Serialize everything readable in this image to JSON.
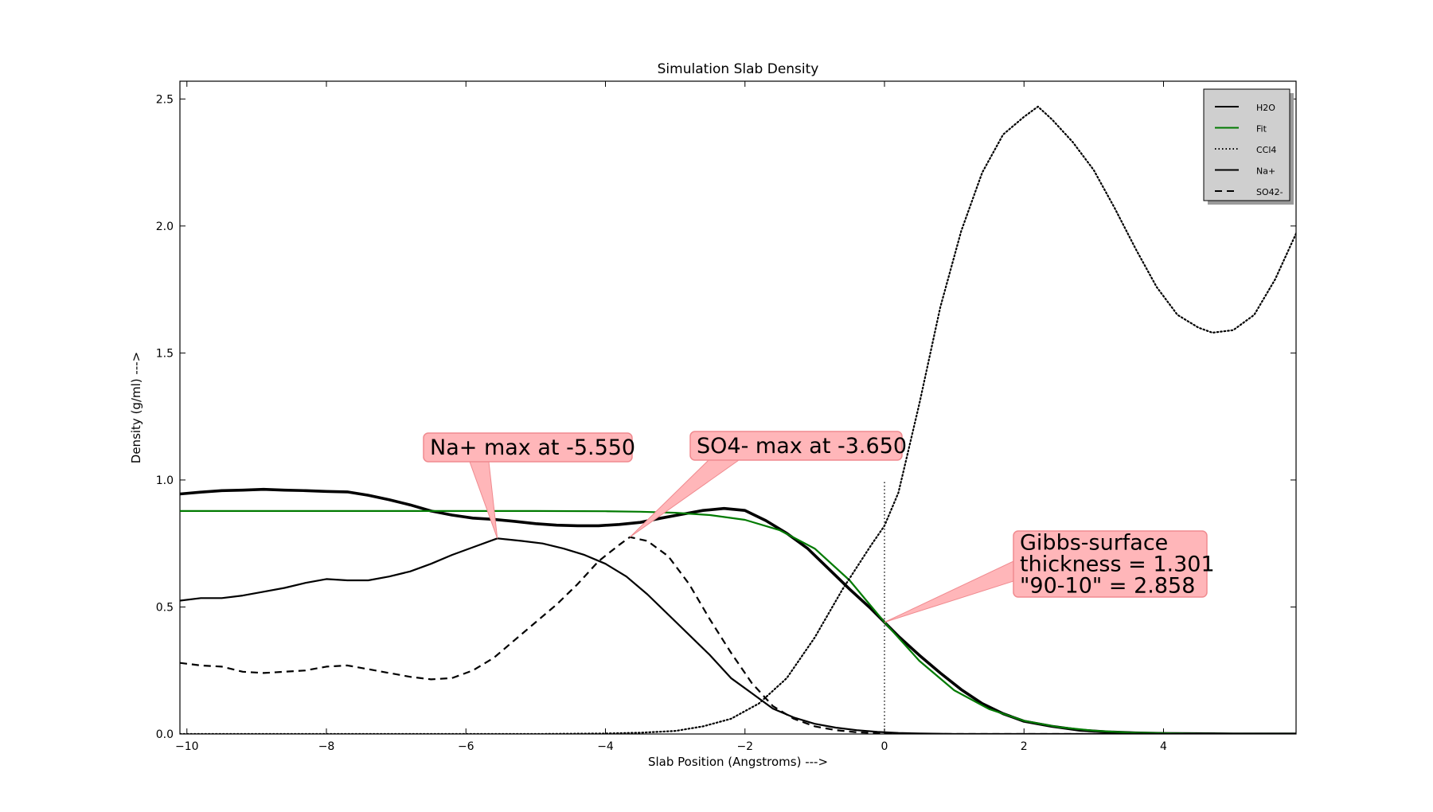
{
  "chart_data": {
    "type": "line",
    "title": "Simulation Slab Density",
    "xlabel": "Slab Position (Angstroms) --->",
    "ylabel": "Density (g/ml) --->",
    "xlim": [
      -10.1,
      5.9
    ],
    "ylim": [
      0.0,
      2.57
    ],
    "xticks": [
      -10,
      -8,
      -6,
      -4,
      -2,
      0,
      2,
      4
    ],
    "xtick_labels": [
      "−10",
      "−8",
      "−6",
      "−4",
      "−2",
      "0",
      "2",
      "4"
    ],
    "yticks": [
      0.0,
      0.5,
      1.0,
      1.5,
      2.0,
      2.5
    ],
    "ytick_labels": [
      "0.0",
      "0.5",
      "1.0",
      "1.5",
      "2.0",
      "2.5"
    ],
    "grid": false,
    "legend_position": "top-right",
    "series": [
      {
        "name": "H2O",
        "color": "#000000",
        "style": "solid-thick",
        "x": [
          -10.1,
          -9.8,
          -9.5,
          -9.2,
          -8.9,
          -8.6,
          -8.3,
          -8.0,
          -7.7,
          -7.4,
          -7.1,
          -6.8,
          -6.5,
          -6.2,
          -5.9,
          -5.6,
          -5.3,
          -5.0,
          -4.7,
          -4.4,
          -4.1,
          -3.8,
          -3.5,
          -3.2,
          -2.9,
          -2.6,
          -2.3,
          -2.0,
          -1.7,
          -1.4,
          -1.1,
          -0.8,
          -0.5,
          -0.2,
          0.0,
          0.2,
          0.5,
          0.8,
          1.1,
          1.4,
          1.7,
          2.0,
          2.4,
          2.8,
          3.2,
          3.6,
          4.0,
          4.5,
          5.0,
          5.5,
          5.9
        ],
        "y": [
          0.945,
          0.952,
          0.958,
          0.96,
          0.963,
          0.96,
          0.958,
          0.955,
          0.953,
          0.94,
          0.922,
          0.902,
          0.878,
          0.862,
          0.85,
          0.845,
          0.837,
          0.828,
          0.822,
          0.82,
          0.82,
          0.825,
          0.833,
          0.85,
          0.865,
          0.88,
          0.888,
          0.88,
          0.84,
          0.79,
          0.73,
          0.65,
          0.57,
          0.495,
          0.44,
          0.385,
          0.31,
          0.24,
          0.175,
          0.12,
          0.08,
          0.05,
          0.03,
          0.015,
          0.008,
          0.004,
          0.002,
          0.001,
          0.0,
          0.0,
          0.0
        ]
      },
      {
        "name": "Fit",
        "color": "#007a00",
        "style": "solid",
        "x": [
          -10.1,
          -9.0,
          -8.0,
          -7.0,
          -6.0,
          -5.0,
          -4.0,
          -3.5,
          -3.0,
          -2.5,
          -2.0,
          -1.5,
          -1.0,
          -0.5,
          0.0,
          0.5,
          1.0,
          1.5,
          2.0,
          2.5,
          3.0,
          3.5,
          4.0,
          4.5,
          5.0,
          5.9
        ],
        "y": [
          0.878,
          0.878,
          0.878,
          0.878,
          0.878,
          0.878,
          0.877,
          0.875,
          0.871,
          0.862,
          0.843,
          0.802,
          0.73,
          0.605,
          0.44,
          0.288,
          0.172,
          0.098,
          0.052,
          0.027,
          0.013,
          0.006,
          0.003,
          0.001,
          0.0,
          0.0
        ]
      },
      {
        "name": "CCl4",
        "color": "#000000",
        "style": "dotted",
        "x": [
          -10.1,
          -9.0,
          -8.0,
          -7.0,
          -6.0,
          -5.0,
          -4.0,
          -3.5,
          -3.0,
          -2.6,
          -2.2,
          -1.8,
          -1.4,
          -1.0,
          -0.6,
          -0.2,
          0.0,
          0.2,
          0.5,
          0.8,
          1.1,
          1.4,
          1.7,
          2.0,
          2.2,
          2.4,
          2.7,
          3.0,
          3.3,
          3.6,
          3.9,
          4.2,
          4.5,
          4.7,
          5.0,
          5.3,
          5.6,
          5.9
        ],
        "y": [
          0.0,
          0.0,
          0.0,
          0.0,
          0.0,
          0.0,
          0.002,
          0.005,
          0.012,
          0.03,
          0.06,
          0.12,
          0.22,
          0.38,
          0.57,
          0.74,
          0.82,
          0.95,
          1.3,
          1.68,
          1.98,
          2.21,
          2.36,
          2.43,
          2.47,
          2.42,
          2.33,
          2.22,
          2.07,
          1.91,
          1.76,
          1.65,
          1.6,
          1.58,
          1.59,
          1.65,
          1.79,
          1.97
        ]
      },
      {
        "name": "Na+",
        "color": "#000000",
        "style": "solid",
        "x": [
          -10.1,
          -9.8,
          -9.5,
          -9.2,
          -8.9,
          -8.6,
          -8.3,
          -8.0,
          -7.7,
          -7.4,
          -7.1,
          -6.8,
          -6.5,
          -6.2,
          -5.9,
          -5.55,
          -5.2,
          -4.9,
          -4.6,
          -4.3,
          -4.0,
          -3.7,
          -3.4,
          -3.1,
          -2.8,
          -2.5,
          -2.2,
          -1.9,
          -1.6,
          -1.3,
          -1.0,
          -0.7,
          -0.4,
          -0.1,
          0.2,
          0.5,
          1.0,
          2.0,
          3.0,
          5.9
        ],
        "y": [
          0.525,
          0.535,
          0.535,
          0.545,
          0.56,
          0.575,
          0.595,
          0.61,
          0.605,
          0.605,
          0.62,
          0.64,
          0.67,
          0.705,
          0.735,
          0.77,
          0.76,
          0.75,
          0.73,
          0.705,
          0.67,
          0.62,
          0.55,
          0.47,
          0.39,
          0.31,
          0.22,
          0.16,
          0.1,
          0.065,
          0.04,
          0.025,
          0.015,
          0.008,
          0.004,
          0.002,
          0.0,
          0.0,
          0.0,
          0.0
        ]
      },
      {
        "name": "SO42-",
        "color": "#000000",
        "style": "dashed",
        "x": [
          -10.1,
          -9.8,
          -9.5,
          -9.2,
          -8.9,
          -8.6,
          -8.3,
          -8.0,
          -7.7,
          -7.4,
          -7.1,
          -6.8,
          -6.5,
          -6.2,
          -5.9,
          -5.6,
          -5.3,
          -5.0,
          -4.7,
          -4.4,
          -4.1,
          -3.8,
          -3.65,
          -3.4,
          -3.1,
          -2.8,
          -2.5,
          -2.2,
          -1.9,
          -1.6,
          -1.3,
          -1.0,
          -0.7,
          -0.4,
          -0.1,
          0.2,
          0.5,
          1.0,
          2.0,
          5.9
        ],
        "y": [
          0.28,
          0.27,
          0.265,
          0.245,
          0.24,
          0.245,
          0.25,
          0.265,
          0.27,
          0.255,
          0.24,
          0.225,
          0.215,
          0.22,
          0.25,
          0.3,
          0.37,
          0.44,
          0.51,
          0.59,
          0.68,
          0.745,
          0.775,
          0.76,
          0.7,
          0.59,
          0.45,
          0.32,
          0.2,
          0.11,
          0.06,
          0.03,
          0.015,
          0.007,
          0.003,
          0.001,
          0.0,
          0.0,
          0.0,
          0.0
        ]
      }
    ],
    "reference_lines": [
      {
        "type": "vertical",
        "x": 0.0,
        "y_from": 0.0,
        "y_to": 1.0,
        "style": "dotted",
        "color": "#000000"
      }
    ],
    "annotations": [
      {
        "lines": [
          "Na+ max at -5.550"
        ],
        "point": [
          -5.55,
          0.77
        ]
      },
      {
        "lines": [
          "SO4- max at -3.650"
        ],
        "point": [
          -3.65,
          0.775
        ]
      },
      {
        "lines": [
          "Gibbs-surface",
          "thickness = 1.301",
          "\"90-10\" = 2.858"
        ],
        "point": [
          0.0,
          0.44
        ]
      }
    ]
  }
}
